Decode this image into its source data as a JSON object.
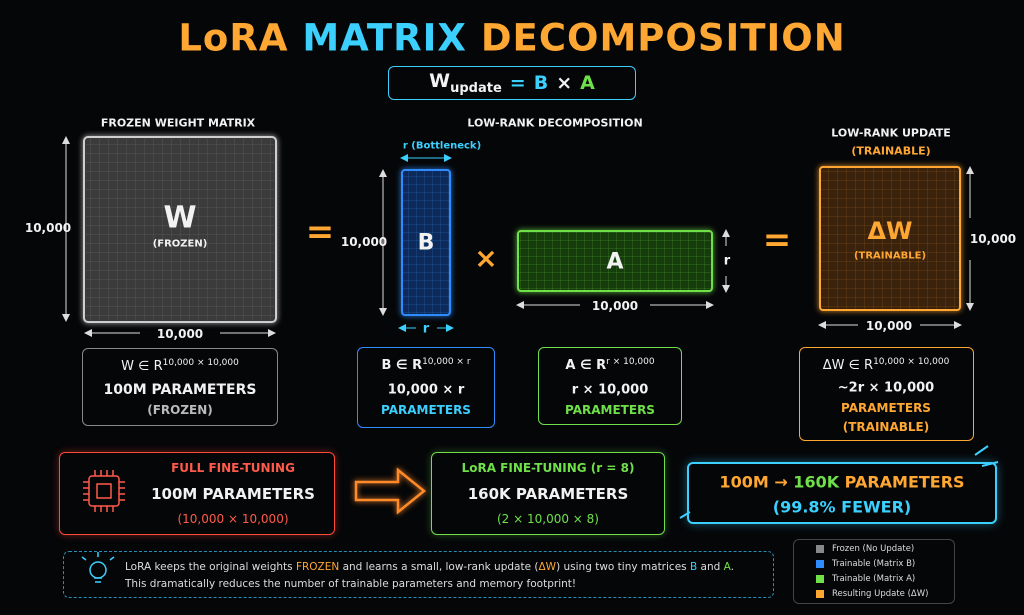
{
  "title": {
    "part1": "LoRA",
    "part2": "MATRIX",
    "part3": "DECOMPOSITION"
  },
  "formula": {
    "lhs": "W",
    "sub": "update",
    "eq": "=",
    "b": "B",
    "times": "×",
    "a": "A"
  },
  "frozen": {
    "heading": "FROZEN WEIGHT MATRIX",
    "symbol": "W",
    "label": "(FROZEN)",
    "height": "10,000",
    "width": "10,000",
    "notation": "W ∈ R",
    "superscript": "10,000 × 10,000",
    "params": "100M PARAMETERS",
    "status": "(FROZEN)"
  },
  "operators": {
    "equals1": "=",
    "times": "×",
    "equals2": "="
  },
  "decomposition": {
    "heading": "LOW-RANK DECOMPOSITION",
    "bottleneck": "r (Bottleneck)",
    "b": {
      "symbol": "B",
      "height": "10,000",
      "width": "r",
      "notation": "B ∈ R",
      "superscript": "10,000 × r",
      "size": "10,000 × r",
      "params": "PARAMETERS"
    },
    "a": {
      "symbol": "A",
      "height": "r",
      "width": "10,000",
      "notation": "A ∈ R",
      "superscript": "r × 10,000",
      "size": "r × 10,000",
      "params": "PARAMETERS"
    }
  },
  "update": {
    "heading": "LOW-RANK UPDATE",
    "subheading": "(TRAINABLE)",
    "symbol": "ΔW",
    "label": "(TRAINABLE)",
    "height": "10,000",
    "width": "10,000",
    "notation": "ΔW ∈ R",
    "superscript": "10,000 × 10,000",
    "size": "~2r × 10,000",
    "params": "PARAMETERS",
    "status": "(TRAINABLE)"
  },
  "full_finetuning": {
    "title": "FULL FINE-TUNING",
    "params": "100M PARAMETERS",
    "formula": "(10,000 × 10,000)"
  },
  "lora_finetuning": {
    "title": "LoRA FINE-TUNING (r = 8)",
    "params": "160K PARAMETERS",
    "formula": "(2 × 10,000 × 8)"
  },
  "summary": {
    "from": "100M →",
    "to": "160K",
    "unit": "PARAMETERS",
    "reduction": "(99.8% FEWER)"
  },
  "note": {
    "line1": [
      "LoRA keeps the original weights ",
      "FROZEN",
      " and learns a small, low-rank update (",
      "ΔW",
      ") using two tiny matrices ",
      "B",
      " and ",
      "A",
      "."
    ],
    "line2": "This dramatically reduces the number of trainable parameters and memory footprint!"
  },
  "legend": [
    "Frozen (No Update)",
    "Trainable (Matrix B)",
    "Trainable (Matrix A)",
    "Resulting Update (ΔW)"
  ]
}
